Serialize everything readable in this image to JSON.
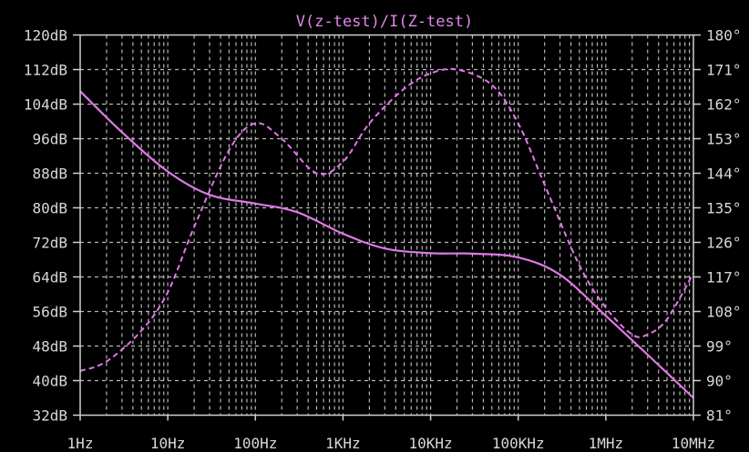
{
  "chart_data": {
    "type": "line",
    "title": "V(z-test)/I(Z-test)",
    "x_scale": "log",
    "xlim": [
      1,
      10000000
    ],
    "x_ticks": [
      {
        "value": 1,
        "label": "1Hz"
      },
      {
        "value": 10,
        "label": "10Hz"
      },
      {
        "value": 100,
        "label": "100Hz"
      },
      {
        "value": 1000,
        "label": "1KHz"
      },
      {
        "value": 10000,
        "label": "10KHz"
      },
      {
        "value": 100000,
        "label": "100KHz"
      },
      {
        "value": 1000000,
        "label": "1MHz"
      },
      {
        "value": 10000000,
        "label": "10MHz"
      }
    ],
    "ylim_left": [
      32,
      120
    ],
    "y_ticks_left": [
      {
        "value": 120,
        "label": "120dB"
      },
      {
        "value": 112,
        "label": "112dB"
      },
      {
        "value": 104,
        "label": "104dB"
      },
      {
        "value": 96,
        "label": "96dB"
      },
      {
        "value": 88,
        "label": "88dB"
      },
      {
        "value": 80,
        "label": "80dB"
      },
      {
        "value": 72,
        "label": "72dB"
      },
      {
        "value": 64,
        "label": "64dB"
      },
      {
        "value": 56,
        "label": "56dB"
      },
      {
        "value": 48,
        "label": "48dB"
      },
      {
        "value": 40,
        "label": "40dB"
      },
      {
        "value": 32,
        "label": "32dB"
      }
    ],
    "ylim_right": [
      81,
      180
    ],
    "y_ticks_right": [
      {
        "value": 180,
        "label": "180°"
      },
      {
        "value": 171,
        "label": "171°"
      },
      {
        "value": 162,
        "label": "162°"
      },
      {
        "value": 153,
        "label": "153°"
      },
      {
        "value": 144,
        "label": "144°"
      },
      {
        "value": 135,
        "label": "135°"
      },
      {
        "value": 126,
        "label": "126°"
      },
      {
        "value": 117,
        "label": "117°"
      },
      {
        "value": 108,
        "label": "108°"
      },
      {
        "value": 99,
        "label": "99°"
      },
      {
        "value": 90,
        "label": "90°"
      },
      {
        "value": 81,
        "label": "81°"
      }
    ],
    "grid": true,
    "series": [
      {
        "kind": "magnitude",
        "axis": "left",
        "line_style": "solid",
        "color": "#e078e8",
        "points": [
          [
            1,
            107
          ],
          [
            3,
            97.5
          ],
          [
            10,
            88.4
          ],
          [
            30,
            83
          ],
          [
            100,
            81
          ],
          [
            300,
            79
          ],
          [
            1000,
            74
          ],
          [
            3000,
            70.6
          ],
          [
            10000,
            69.5
          ],
          [
            30000,
            69.4
          ],
          [
            100000,
            68.5
          ],
          [
            300000,
            64.5
          ],
          [
            1000000,
            55
          ],
          [
            3000000,
            46
          ],
          [
            10000000,
            36
          ]
        ]
      },
      {
        "kind": "phase",
        "axis": "right",
        "line_style": "dashed",
        "color": "#e078e8",
        "points": [
          [
            1,
            92.5
          ],
          [
            2,
            95
          ],
          [
            5,
            103
          ],
          [
            10,
            113
          ],
          [
            20,
            130
          ],
          [
            50,
            150
          ],
          [
            100,
            157
          ],
          [
            200,
            153
          ],
          [
            500,
            144
          ],
          [
            1000,
            147
          ],
          [
            2000,
            157
          ],
          [
            5000,
            166
          ],
          [
            10000,
            170
          ],
          [
            20000,
            171
          ],
          [
            50000,
            167
          ],
          [
            100000,
            157
          ],
          [
            200000,
            141
          ],
          [
            500000,
            120
          ],
          [
            1000000,
            109
          ],
          [
            2000000,
            102
          ],
          [
            3000000,
            102
          ],
          [
            5000000,
            106
          ],
          [
            10000000,
            118
          ]
        ]
      }
    ]
  }
}
